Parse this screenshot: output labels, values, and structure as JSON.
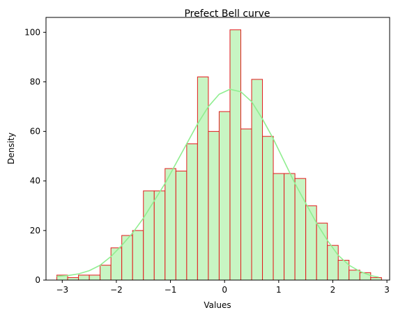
{
  "chart_data": {
    "type": "bar",
    "title": "Prefect Bell curve",
    "xlabel": "Values",
    "ylabel": "Density",
    "xlim": [
      -3.3,
      3.05
    ],
    "ylim": [
      0,
      106
    ],
    "x_ticks": [
      -3,
      -2,
      -1,
      0,
      1,
      2,
      3
    ],
    "y_ticks": [
      0,
      20,
      40,
      60,
      80,
      100
    ],
    "bin_start": -3.1,
    "bin_width": 0.2,
    "values": [
      2,
      1,
      2,
      2,
      6,
      13,
      18,
      20,
      36,
      36,
      45,
      44,
      55,
      82,
      60,
      68,
      101,
      61,
      81,
      58,
      43,
      43,
      41,
      30,
      23,
      14,
      8,
      4,
      3,
      1
    ],
    "kde": {
      "x": [
        -3.1,
        -2.9,
        -2.7,
        -2.5,
        -2.3,
        -2.1,
        -1.9,
        -1.7,
        -1.5,
        -1.3,
        -1.1,
        -0.9,
        -0.7,
        -0.5,
        -0.3,
        -0.1,
        0.1,
        0.3,
        0.5,
        0.7,
        0.9,
        1.1,
        1.3,
        1.5,
        1.7,
        1.9,
        2.1,
        2.3,
        2.5,
        2.7,
        2.85
      ],
      "y": [
        1.5,
        1.8,
        2.5,
        3.8,
        6,
        9.5,
        14,
        19,
        25,
        32,
        39,
        47,
        55,
        63,
        70,
        75,
        77,
        76,
        72,
        65,
        57,
        48,
        39,
        31,
        23,
        16,
        10,
        6,
        3.5,
        1.8,
        1.2
      ]
    },
    "grid": false,
    "colors": {
      "bar_fill": "#c8f5c3",
      "bar_edge": "#e31a1c",
      "kde_line": "#90ee90"
    }
  }
}
